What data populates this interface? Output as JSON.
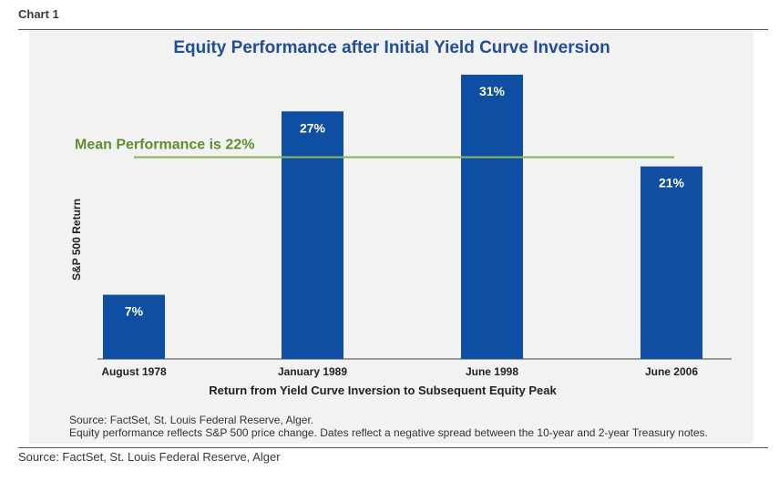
{
  "figure_label": "Chart 1",
  "outer_source": "Source: FactSet, St. Louis Federal Reserve, Alger",
  "colors": {
    "bar": "#0e4ea3",
    "mean_line": "#8ab55a",
    "mean_text": "#5e8f2e",
    "title": "#1f4e9c",
    "panel": "#f2f2f2"
  },
  "chart_data": {
    "type": "bar",
    "title": "Equity Performance after Initial Yield Curve Inversion",
    "xlabel": "Return from Yield Curve Inversion to Subsequent Equity Peak",
    "ylabel": "S&P 500 Return",
    "categories": [
      "August 1978",
      "January 1989",
      "June 1998",
      "June 2006"
    ],
    "values": [
      7,
      27,
      31,
      21
    ],
    "data_labels": [
      "7%",
      "27%",
      "31%",
      "21%"
    ],
    "ylim": [
      0,
      31
    ],
    "mean": {
      "value": 22,
      "label": "Mean Performance is 22%"
    },
    "grid": false,
    "source_lines": [
      "Source: FactSet, St. Louis Federal Reserve, Alger.",
      "Equity performance reflects S&P 500 price change.  Dates reflect a negative spread between the 10-year and 2-year Treasury notes."
    ]
  }
}
